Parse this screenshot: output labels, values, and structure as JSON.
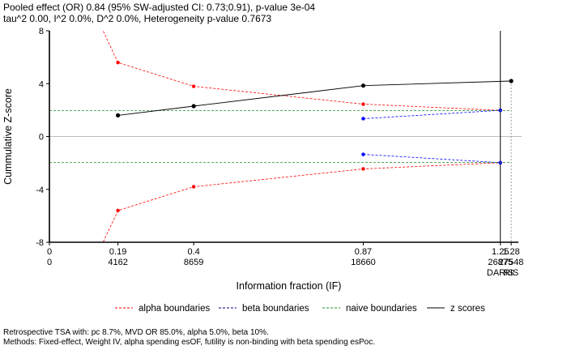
{
  "header": {
    "line1": "Pooled effect (OR) 0.84 (95% SW-adjusted CI: 0.73;0.91), p-value 3e-04",
    "line2": "tau^2 0.00, I^2 0.0%, D^2 0.0%, Heterogeneity p-value 0.7673"
  },
  "footer": {
    "line1": "Retrospective TSA with: pc 8.7%, MVD OR 85.0%, alpha 5.0%, beta 10%.",
    "line2": "Methods: Fixed-effect, Weight IV, alpha spending esOF, futility is non-binding with beta spending esPoc."
  },
  "chart_data": {
    "type": "line",
    "xlabel": "Information fraction (IF)",
    "ylabel": "Cummulative Z-score",
    "xlim": [
      0,
      1.3
    ],
    "ylim": [
      -8,
      8
    ],
    "y_ticks": [
      -8,
      -4,
      0,
      4,
      8
    ],
    "y_tick_labels": [
      "-8",
      "-4",
      "0",
      "4",
      "8"
    ],
    "x_ticks": [
      0,
      0.19,
      0.4,
      0.87,
      1.25,
      1.28
    ],
    "x_tick_labels": [
      "0",
      "0.19",
      "0.4",
      "0.87",
      "1.25",
      "1.28"
    ],
    "x_sample_sizes": [
      "0",
      "4162",
      "8659",
      "18660",
      "26875",
      "27548"
    ],
    "markers": [
      {
        "x": 1.25,
        "label": "DARIS",
        "style": "solid"
      },
      {
        "x": 1.28,
        "label": "RIS",
        "style": "dotted"
      }
    ],
    "series": [
      {
        "name": "alpha boundaries",
        "role": "alpha_upper",
        "color": "#ff0000",
        "dash": true,
        "x": [
          0.19,
          0.4,
          0.87,
          1.25
        ],
        "y": [
          5.6,
          3.8,
          2.45,
          1.98
        ],
        "lead_in": [
          0.135,
          8.8
        ]
      },
      {
        "name": "alpha boundaries",
        "role": "alpha_lower",
        "color": "#ff0000",
        "dash": true,
        "x": [
          0.19,
          0.4,
          0.87,
          1.25
        ],
        "y": [
          -5.6,
          -3.8,
          -2.45,
          -1.98
        ],
        "lead_in": [
          0.135,
          -8.8
        ]
      },
      {
        "name": "beta boundaries",
        "role": "beta_upper",
        "color": "#0000ff",
        "dash": true,
        "x": [
          0.87,
          1.25
        ],
        "y": [
          1.35,
          1.98
        ]
      },
      {
        "name": "beta boundaries",
        "role": "beta_lower",
        "color": "#0000ff",
        "dash": true,
        "x": [
          0.87,
          1.25
        ],
        "y": [
          -1.35,
          -1.98
        ]
      },
      {
        "name": "naive boundaries",
        "role": "naive_upper",
        "color": "#228b22",
        "dash": true,
        "x": [
          0,
          1.28
        ],
        "y": [
          1.96,
          1.96
        ]
      },
      {
        "name": "naive boundaries",
        "role": "naive_lower",
        "color": "#228b22",
        "dash": true,
        "x": [
          0,
          1.28
        ],
        "y": [
          -1.96,
          -1.96
        ]
      },
      {
        "name": "z scores",
        "role": "z",
        "color": "#000000",
        "dash": false,
        "x": [
          0.19,
          0.4,
          0.87,
          1.28
        ],
        "y": [
          1.6,
          2.3,
          3.85,
          4.2
        ]
      }
    ],
    "legend": {
      "placement": "bottom",
      "entries": [
        {
          "label": "alpha boundaries",
          "color": "#ff0000",
          "dash": true
        },
        {
          "label": "beta boundaries",
          "color": "#000080",
          "dash": true
        },
        {
          "label": "naive boundaries",
          "color": "#228b22",
          "dash": true
        },
        {
          "label": "z scores",
          "color": "#000000",
          "dash": false
        }
      ]
    },
    "zero_line": true,
    "grid": false
  }
}
